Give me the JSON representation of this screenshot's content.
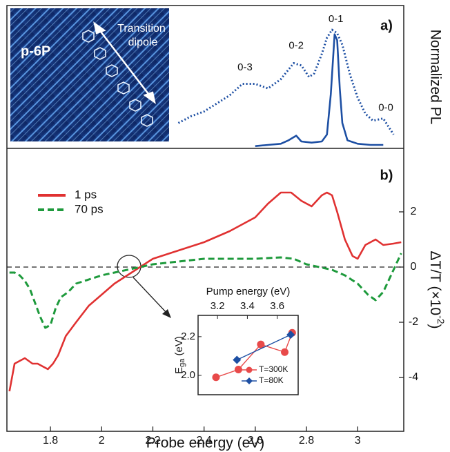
{
  "photo": {
    "label": "p-6P",
    "arrow_label": [
      "Transition",
      "dipole"
    ]
  },
  "chart_data": [
    {
      "type": "line",
      "panel_label": "a)",
      "ylabel": "Normalized PL",
      "annotations": [
        {
          "text": "0-3",
          "x": 2.56,
          "y": 0.68
        },
        {
          "text": "0-2",
          "x": 2.76,
          "y": 0.87
        },
        {
          "text": "0-1",
          "x": 2.915,
          "y": 1.1
        },
        {
          "text": "0-0",
          "x": 3.11,
          "y": 0.33
        }
      ],
      "xlim": [
        1.63,
        3.18
      ],
      "ylim": [
        -0.02,
        1.22
      ],
      "series": [
        {
          "color": "#1d4fa3",
          "dash": "dotted",
          "x": [
            2.3,
            2.35,
            2.4,
            2.45,
            2.5,
            2.55,
            2.6,
            2.65,
            2.7,
            2.75,
            2.78,
            2.81,
            2.83,
            2.86,
            2.88,
            2.9,
            2.92,
            2.94,
            2.97,
            3.0,
            3.03,
            3.06,
            3.1,
            3.14
          ],
          "values": [
            0.2,
            0.26,
            0.3,
            0.37,
            0.44,
            0.54,
            0.54,
            0.5,
            0.58,
            0.72,
            0.7,
            0.6,
            0.63,
            0.8,
            0.94,
            1.01,
            0.98,
            0.88,
            0.62,
            0.42,
            0.28,
            0.22,
            0.24,
            0.1
          ]
        },
        {
          "color": "#1d4fa3",
          "dash": "solid",
          "x": [
            2.6,
            2.65,
            2.7,
            2.73,
            2.76,
            2.78,
            2.82,
            2.86,
            2.88,
            2.895,
            2.91,
            2.92,
            2.93,
            2.94,
            2.96,
            3.0,
            3.05,
            3.1
          ],
          "values": [
            0.0,
            0.01,
            0.02,
            0.05,
            0.09,
            0.04,
            0.03,
            0.04,
            0.1,
            0.45,
            0.97,
            0.92,
            0.5,
            0.2,
            0.05,
            0.02,
            0.01,
            0.01
          ]
        }
      ]
    },
    {
      "type": "line",
      "panel_label": "b)",
      "xlabel": "Probe energy (eV)",
      "ylabel": {
        "main": "ΔT/T (×10",
        "exp": "-2",
        "close": ")"
      },
      "xlim": [
        1.63,
        3.18
      ],
      "ylim": [
        -5.95,
        4.3
      ],
      "xticks": [
        1.8,
        2.0,
        2.2,
        2.4,
        2.6,
        2.8,
        3.0
      ],
      "yticks": [
        -4,
        -2,
        0,
        2
      ],
      "series": [
        {
          "name": "1 ps",
          "color": "#e03131",
          "dash": "solid",
          "x": [
            1.64,
            1.65,
            1.66,
            1.68,
            1.7,
            1.73,
            1.75,
            1.77,
            1.79,
            1.81,
            1.83,
            1.86,
            1.9,
            1.95,
            2.0,
            2.05,
            2.1,
            2.15,
            2.2,
            2.3,
            2.4,
            2.5,
            2.6,
            2.65,
            2.7,
            2.74,
            2.78,
            2.82,
            2.86,
            2.88,
            2.9,
            2.92,
            2.95,
            2.98,
            3.0,
            3.03,
            3.07,
            3.1,
            3.14,
            3.17
          ],
          "values": [
            -4.5,
            -4.0,
            -3.5,
            -3.4,
            -3.3,
            -3.5,
            -3.5,
            -3.6,
            -3.7,
            -3.5,
            -3.2,
            -2.5,
            -2.0,
            -1.4,
            -1.0,
            -0.6,
            -0.3,
            0.0,
            0.3,
            0.6,
            0.9,
            1.3,
            1.8,
            2.3,
            2.7,
            2.7,
            2.4,
            2.2,
            2.6,
            2.7,
            2.6,
            2.0,
            1.0,
            0.4,
            0.3,
            0.8,
            1.0,
            0.8,
            0.85,
            0.9
          ]
        },
        {
          "name": "70 ps",
          "color": "#1e9a3c",
          "dash": "dashed",
          "x": [
            1.64,
            1.66,
            1.68,
            1.7,
            1.72,
            1.74,
            1.76,
            1.78,
            1.8,
            1.82,
            1.84,
            1.87,
            1.9,
            2.0,
            2.1,
            2.2,
            2.3,
            2.4,
            2.5,
            2.6,
            2.7,
            2.75,
            2.8,
            2.85,
            2.9,
            2.95,
            3.0,
            3.04,
            3.07,
            3.1,
            3.13,
            3.17
          ],
          "values": [
            -0.2,
            -0.2,
            -0.3,
            -0.5,
            -0.8,
            -1.3,
            -1.8,
            -2.2,
            -2.1,
            -1.5,
            -1.1,
            -0.9,
            -0.6,
            -0.3,
            -0.1,
            0.1,
            0.2,
            0.3,
            0.3,
            0.3,
            0.35,
            0.3,
            0.1,
            0.0,
            -0.1,
            -0.3,
            -0.6,
            -1.0,
            -1.2,
            -0.9,
            -0.3,
            0.5
          ]
        }
      ]
    },
    {
      "type": "scatter",
      "xlabel": "Pump energy (eV)",
      "ylabel": {
        "main": "E",
        "sub": "ga",
        "unit": " (eV)"
      },
      "xlim": [
        3.07,
        3.74
      ],
      "ylim": [
        1.9,
        2.31
      ],
      "xticks": [
        {
          "value": 3.2,
          "label": "3.2"
        },
        {
          "value": 3.4,
          "label": "3.4"
        },
        {
          "value": 3.6,
          "label": "3.6"
        }
      ],
      "yticks": [
        {
          "value": 2.0,
          "label": "2.0"
        },
        {
          "value": 2.2,
          "label": "2.2"
        }
      ],
      "series": [
        {
          "name": "T=300K",
          "color": "#e84a4a",
          "marker": "circle",
          "x": [
            3.19,
            3.34,
            3.49,
            3.65,
            3.7
          ],
          "values": [
            1.99,
            2.03,
            2.16,
            2.12,
            2.22
          ]
        },
        {
          "name": "T=80K",
          "color": "#1d4fa3",
          "marker": "diamond",
          "x": [
            3.33,
            3.69
          ],
          "values": [
            2.08,
            2.21
          ]
        }
      ]
    }
  ]
}
